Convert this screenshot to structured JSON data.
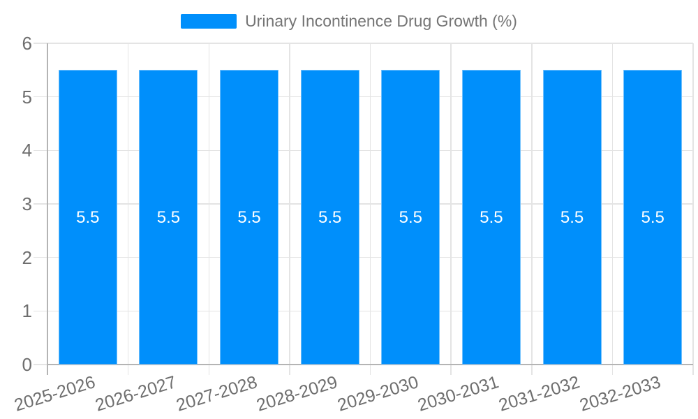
{
  "legend": {
    "items": [
      {
        "label": "Urinary Incontinence Drug Growth (%)",
        "color": "#008FFB"
      }
    ],
    "position": "top"
  },
  "chart_data": {
    "type": "bar",
    "title": "Urinary Incontinence Drug Growth (%)",
    "categories": [
      "2025-2026",
      "2026-2027",
      "2027-2028",
      "2028-2029",
      "2029-2030",
      "2030-2031",
      "2031-2032",
      "2032-2033"
    ],
    "series": [
      {
        "name": "Urinary Incontinence Drug Growth (%)",
        "values": [
          5.5,
          5.5,
          5.5,
          5.5,
          5.5,
          5.5,
          5.5,
          5.5
        ]
      }
    ],
    "data_labels": [
      "5.5",
      "5.5",
      "5.5",
      "5.5",
      "5.5",
      "5.5",
      "5.5",
      "5.5"
    ],
    "xlabel": "",
    "ylabel": "",
    "ylim": [
      0,
      6
    ],
    "yticks": [
      0,
      1,
      2,
      3,
      4,
      5,
      6
    ],
    "grid": true,
    "legend_position": "top"
  },
  "style": {
    "bar_color": "#008FFB",
    "grid_color": "#e4e4e4",
    "axis_color": "#b4b4b4",
    "tick_label_color": "#6e6e6e",
    "legend_text_color": "#757575",
    "value_label_color": "#ffffff"
  }
}
